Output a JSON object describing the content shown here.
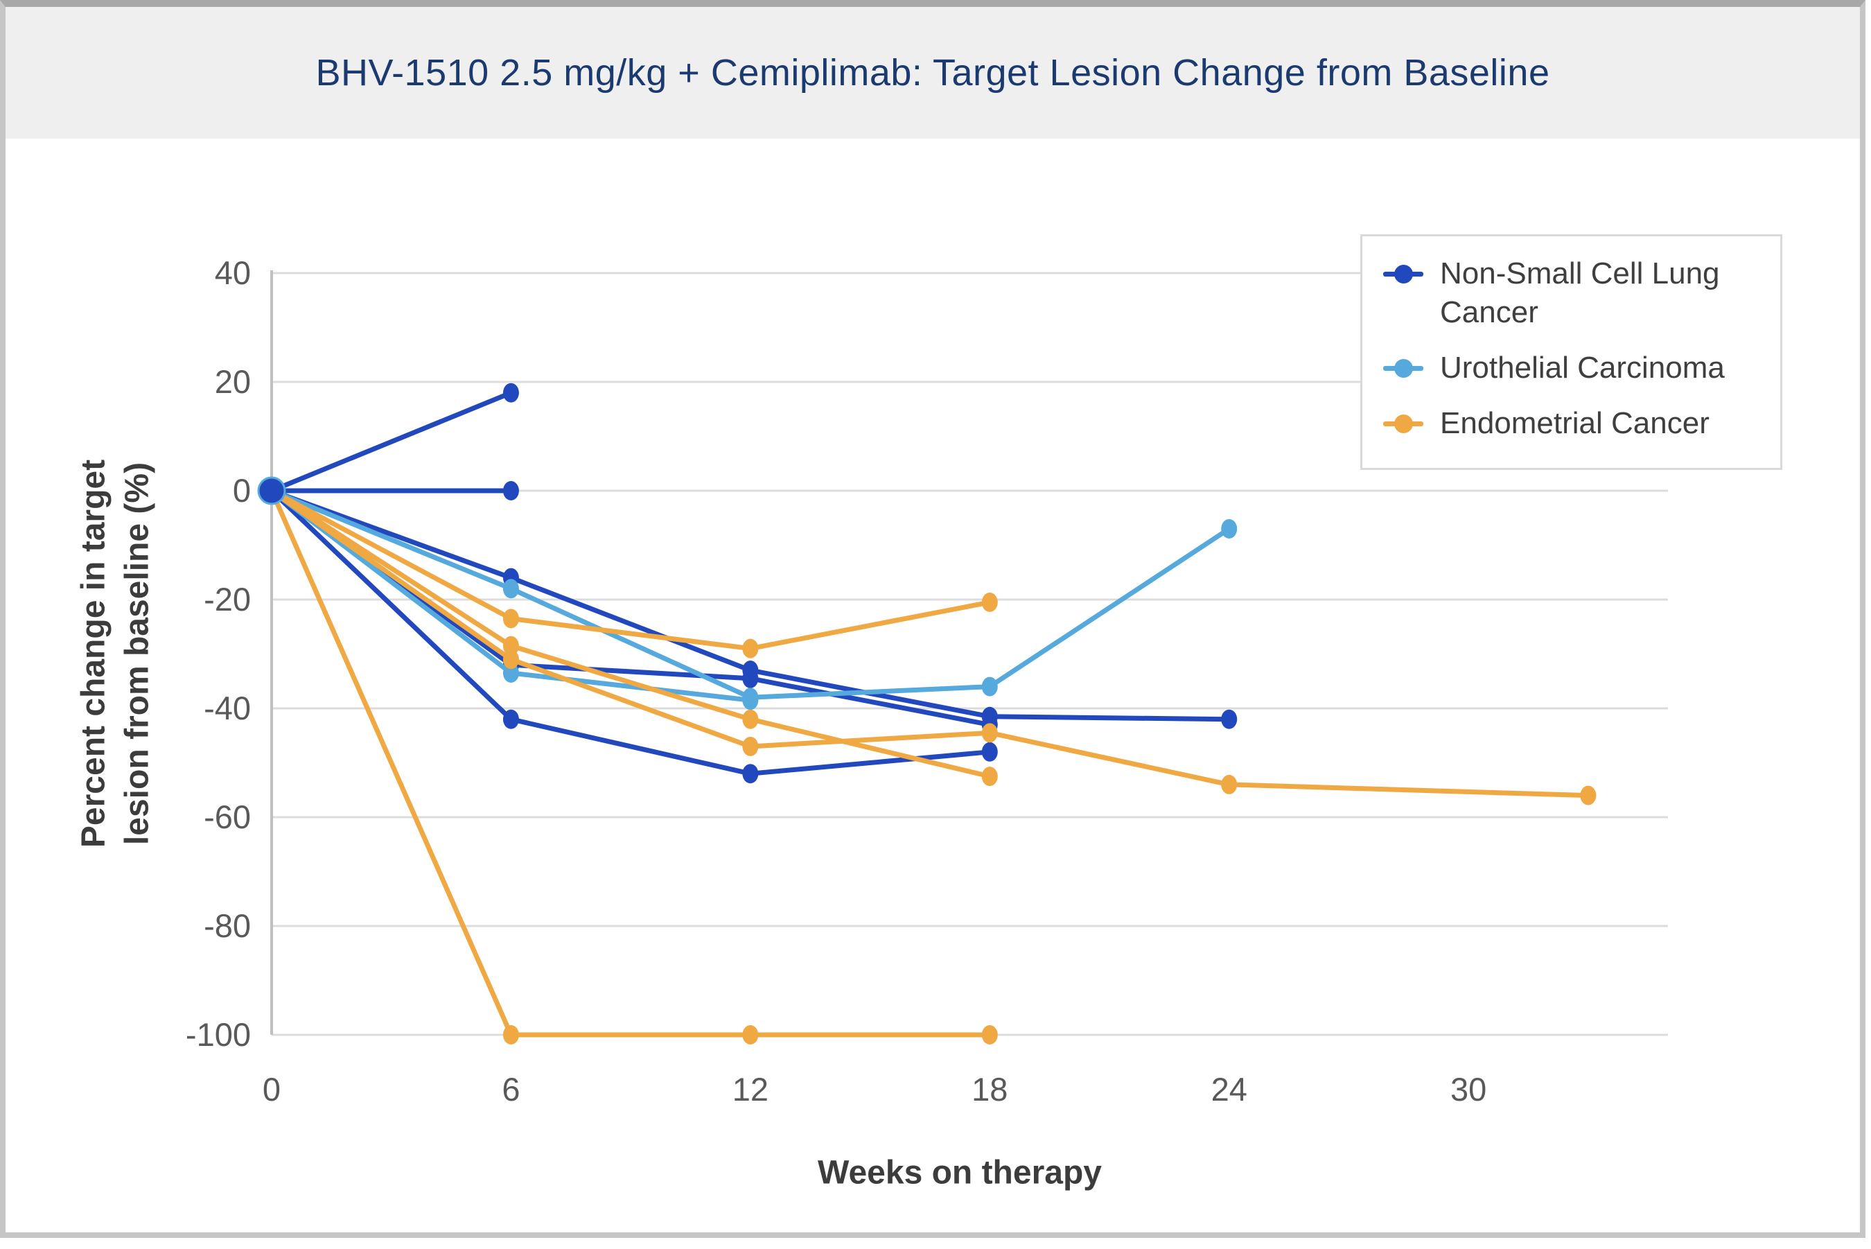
{
  "header": {
    "title": "BHV-1510 2.5 mg/kg + Cemiplimab: Target Lesion Change from Baseline"
  },
  "colors": {
    "title_text": "#1b3a70",
    "band_bg": "#efefef",
    "grid_line": "#dcdcdc",
    "axis_line": "#c0c0c0",
    "tick_text": "#595959",
    "axis_title_text": "#3c3c3c",
    "legend_text": "#3f3f3f",
    "legend_border": "#d9d9d9",
    "nsclc_blue": "#2149bd",
    "urothelial_lightblue": "#55a9dc",
    "endometrial_orange": "#f0a843"
  },
  "chart_data": {
    "type": "line",
    "title": "BHV-1510 2.5 mg/kg + Cemiplimab: Target Lesion Change from Baseline",
    "xlabel": "Weeks on therapy",
    "ylabel": "Percent change in target lesion from baseline (%)",
    "ylabel_lines": [
      "Percent change in target",
      "lesion from baseline (%)"
    ],
    "xlim": [
      0,
      35
    ],
    "ylim": [
      -100,
      40
    ],
    "xticks": [
      0,
      6,
      12,
      18,
      24,
      30
    ],
    "xtick_labels": [
      "0",
      "6",
      "12",
      "18",
      "24",
      "30"
    ],
    "yticks": [
      40,
      20,
      0,
      -20,
      -40,
      -60,
      -80,
      -100
    ],
    "ytick_labels": [
      "40",
      "20",
      "0",
      "-20",
      "-40",
      "-60",
      "-80",
      "-100"
    ],
    "grid": true,
    "legend_position": "top-right",
    "x_unit": "weeks",
    "y_unit": "percent",
    "series": [
      {
        "name": "Non-Small Cell Lung Cancer",
        "color": "#2149bd",
        "patients": [
          [
            [
              0,
              0
            ],
            [
              6,
              18
            ]
          ],
          [
            [
              0,
              0
            ],
            [
              6,
              0
            ]
          ],
          [
            [
              0,
              0
            ],
            [
              6,
              -16
            ],
            [
              12,
              -33
            ],
            [
              18,
              -41.5
            ],
            [
              24,
              -42
            ]
          ],
          [
            [
              0,
              0
            ],
            [
              6,
              -32
            ],
            [
              12,
              -34.5
            ],
            [
              18,
              -43
            ]
          ],
          [
            [
              0,
              0
            ],
            [
              6,
              -42
            ],
            [
              12,
              -52
            ],
            [
              18,
              -48
            ]
          ]
        ]
      },
      {
        "name": "Urothelial Carcinoma",
        "color": "#55a9dc",
        "patients": [
          [
            [
              0,
              0
            ],
            [
              6,
              -18
            ],
            [
              12,
              -38
            ],
            [
              18,
              -36
            ],
            [
              24,
              -7
            ]
          ],
          [
            [
              0,
              0
            ],
            [
              6,
              -33.5
            ],
            [
              12,
              -38.5
            ]
          ]
        ]
      },
      {
        "name": "Endometrial Cancer",
        "color": "#f0a843",
        "patients": [
          [
            [
              0,
              0
            ],
            [
              6,
              -23.5
            ],
            [
              12,
              -29
            ],
            [
              18,
              -20.5
            ]
          ],
          [
            [
              0,
              0
            ],
            [
              6,
              -28.5
            ],
            [
              12,
              -42
            ],
            [
              18,
              -52.5
            ]
          ],
          [
            [
              0,
              0
            ],
            [
              6,
              -31
            ],
            [
              12,
              -47
            ],
            [
              18,
              -44.5
            ],
            [
              24,
              -54
            ],
            [
              33,
              -56
            ]
          ],
          [
            [
              0,
              0
            ],
            [
              6,
              -100
            ],
            [
              12,
              -100
            ],
            [
              18,
              -100
            ]
          ]
        ]
      }
    ]
  },
  "legend": {
    "items": [
      {
        "label": "Non-Small Cell Lung Cancer",
        "color": "#2149bd"
      },
      {
        "label": "Urothelial Carcinoma",
        "color": "#55a9dc"
      },
      {
        "label": "Endometrial Cancer",
        "color": "#f0a843"
      }
    ]
  }
}
